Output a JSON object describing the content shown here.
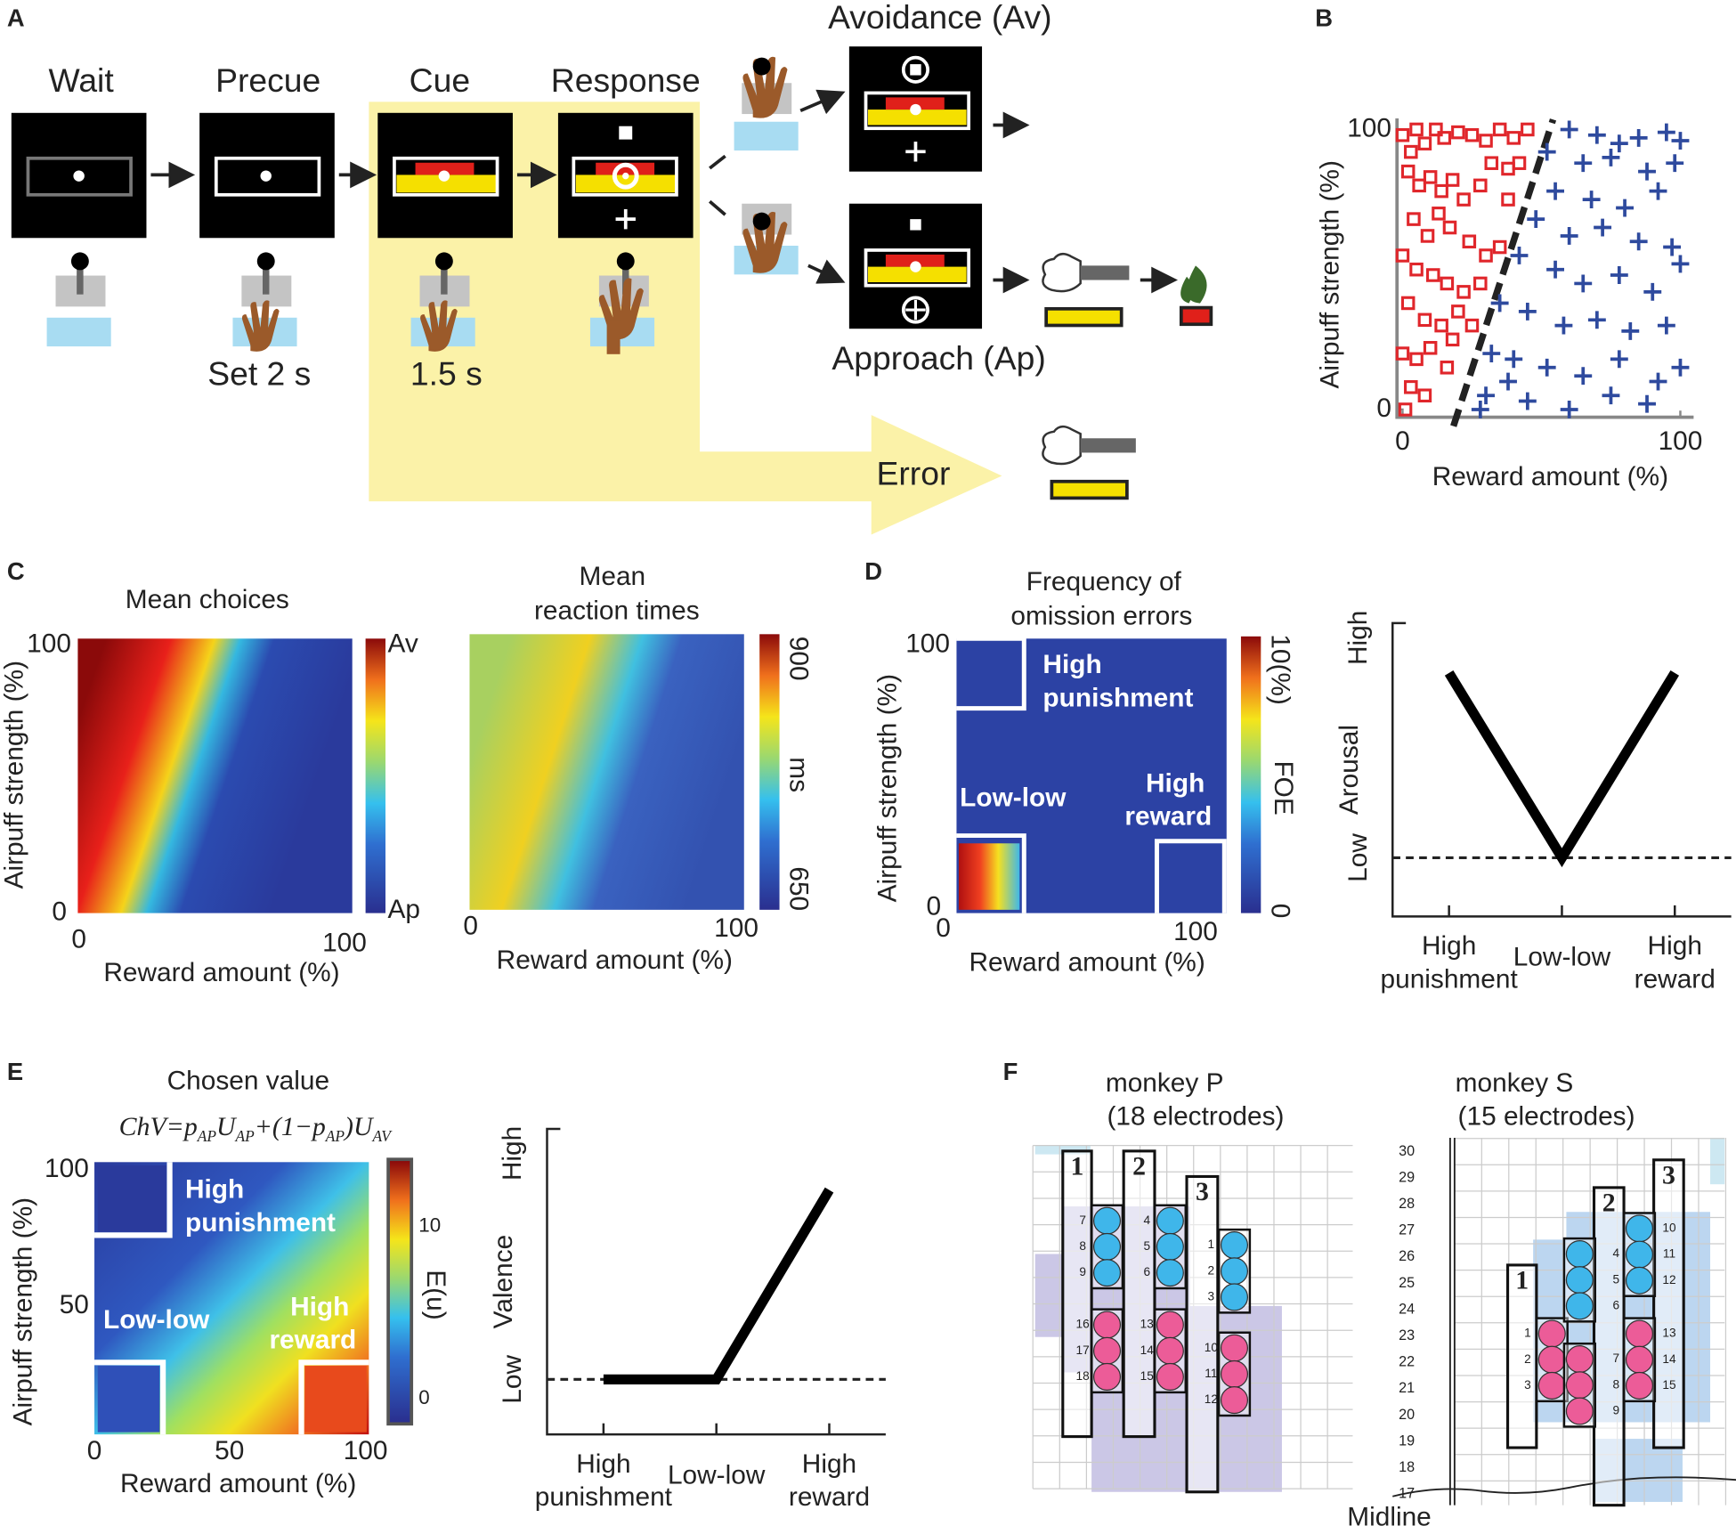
{
  "panels": {
    "A": {
      "label": "A",
      "stages": [
        "Wait",
        "Precue",
        "Cue",
        "Response"
      ],
      "durations": [
        "Set 2 s",
        "1.5 s"
      ],
      "outcomes": [
        "Avoidance (Av)",
        "Approach (Ap)",
        "Error"
      ]
    },
    "B": {
      "label": "B"
    },
    "C": {
      "label": "C",
      "left": {
        "title": "Mean choices",
        "ylabel": "Airpuff strength (%)",
        "xlabel": "Reward amount (%)",
        "xticks": [
          0,
          100
        ],
        "yticks": [
          0,
          100
        ],
        "colorbar": [
          "Av",
          "Ap"
        ]
      },
      "right": {
        "title": [
          "Mean",
          "reaction times"
        ],
        "xlabel": "Reward amount (%)",
        "xticks": [
          0,
          100
        ],
        "colorbar": [
          900,
          650
        ],
        "unit": "ms"
      }
    },
    "D": {
      "label": "D",
      "title": [
        "Frequency of",
        "omission errors"
      ],
      "ylabel": "Airpuff strength (%)",
      "xlabel": "Reward amount (%)",
      "xticks": [
        0,
        100
      ],
      "yticks": [
        0,
        100
      ],
      "regions": [
        "High",
        "punishment",
        "Low-low",
        "High",
        "reward"
      ],
      "colorbar": [
        "10(%)",
        0
      ],
      "unit": "FOE"
    },
    "E": {
      "label": "E",
      "title": "Chosen value",
      "equation": [
        "ChV=p",
        "AP",
        "U",
        "AP",
        "+(1−p",
        "AP",
        ")U",
        "AV"
      ],
      "ylabel": "Airpuff strength (%)",
      "xlabel": "Reward amount (%)",
      "xticks": [
        0,
        50,
        100
      ],
      "yticks": [
        50,
        100
      ],
      "regions": [
        "High",
        "punishment",
        "Low-low",
        "High",
        "reward"
      ],
      "colorbar": [
        10,
        0
      ],
      "unit": "E(u)"
    },
    "F": {
      "label": "F",
      "monkeys": [
        {
          "title": "monkey P",
          "subtitle": "(18 electrodes)",
          "shafts": [
            1,
            2,
            3
          ],
          "electrodes": [
            [
              7,
              8,
              9
            ],
            [
              16,
              17,
              18
            ],
            [
              4,
              5,
              6
            ],
            [
              13,
              14,
              15
            ],
            [
              1,
              2,
              3
            ],
            [
              10,
              11,
              12
            ]
          ]
        },
        {
          "title": "monkey S",
          "subtitle": "(15 electrodes)",
          "shafts": [
            1,
            2,
            3
          ],
          "electrodes": [
            [
              1,
              2,
              3
            ],
            [
              4,
              5,
              6
            ],
            [
              7,
              8,
              9
            ],
            [
              10,
              11,
              12
            ],
            [
              13,
              14,
              15
            ]
          ],
          "rows": [
            17,
            18,
            19,
            20,
            21,
            22,
            23,
            24,
            25,
            26,
            27,
            28,
            29,
            30
          ],
          "midline": "Midline"
        }
      ]
    }
  },
  "chart_data": [
    {
      "type": "scatter",
      "xlabel": "Reward amount (%)",
      "ylabel": "Airpuff strength (%)",
      "xlim": [
        0,
        100
      ],
      "ylim": [
        0,
        100
      ],
      "xticks": [
        0,
        100
      ],
      "yticks": [
        0,
        100
      ],
      "series": [
        {
          "color": "#e0262b",
          "marker": "square",
          "x": [
            0,
            3,
            5,
            8,
            12,
            15,
            20,
            25,
            30,
            35,
            40,
            45,
            2,
            6,
            10,
            14,
            18,
            22,
            28,
            32,
            38,
            4,
            9,
            13,
            17,
            24,
            30,
            35,
            0,
            5,
            11,
            16,
            22,
            28,
            2,
            8,
            14,
            20,
            0,
            5,
            10,
            16,
            3,
            8,
            1,
            18,
            25,
            38,
            42
          ],
          "values": [
            98,
            92,
            100,
            95,
            100,
            97,
            99,
            98,
            96,
            100,
            97,
            100,
            85,
            80,
            83,
            78,
            82,
            75,
            80,
            88,
            86,
            68,
            62,
            70,
            65,
            60,
            55,
            58,
            55,
            50,
            48,
            45,
            42,
            45,
            38,
            32,
            30,
            35,
            20,
            18,
            22,
            15,
            8,
            5,
            0,
            25,
            30,
            75,
            88
          ]
        },
        {
          "color": "#2e4a9e",
          "marker": "cross",
          "x": [
            60,
            70,
            78,
            85,
            95,
            100,
            52,
            65,
            75,
            88,
            98,
            55,
            68,
            80,
            92,
            48,
            60,
            72,
            85,
            97,
            42,
            55,
            65,
            78,
            90,
            100,
            35,
            45,
            58,
            70,
            82,
            95,
            32,
            40,
            52,
            65,
            78,
            92,
            100,
            30,
            45,
            60,
            75,
            88,
            28,
            38
          ],
          "values": [
            100,
            98,
            95,
            97,
            99,
            96,
            92,
            88,
            90,
            85,
            88,
            78,
            75,
            72,
            78,
            68,
            62,
            65,
            60,
            58,
            55,
            50,
            45,
            48,
            42,
            52,
            38,
            35,
            30,
            32,
            28,
            30,
            20,
            18,
            15,
            12,
            18,
            10,
            15,
            5,
            3,
            0,
            5,
            2,
            0,
            10
          ]
        }
      ]
    },
    {
      "type": "line",
      "ylabel": "Arousal",
      "categories": [
        [
          "High",
          "punishment"
        ],
        [
          "Low-low"
        ],
        [
          "High",
          "reward"
        ]
      ],
      "values": [
        0.83,
        0.2,
        0.83
      ],
      "color": "#000000",
      "ylim": [
        0,
        1
      ],
      "yticks": [
        {
          "value": 0.2,
          "label": "Low"
        },
        {
          "value": 0.95,
          "label": "High"
        }
      ]
    },
    {
      "type": "line",
      "ylabel": "Valence",
      "categories": [
        [
          "High",
          "punishment"
        ],
        [
          "Low-low"
        ],
        [
          "High",
          "reward"
        ]
      ],
      "values": [
        0.18,
        0.18,
        0.8
      ],
      "color": "#000000",
      "ylim": [
        0,
        1
      ],
      "yticks": [
        {
          "value": 0.18,
          "label": "Low"
        },
        {
          "value": 0.92,
          "label": "High"
        }
      ]
    }
  ]
}
